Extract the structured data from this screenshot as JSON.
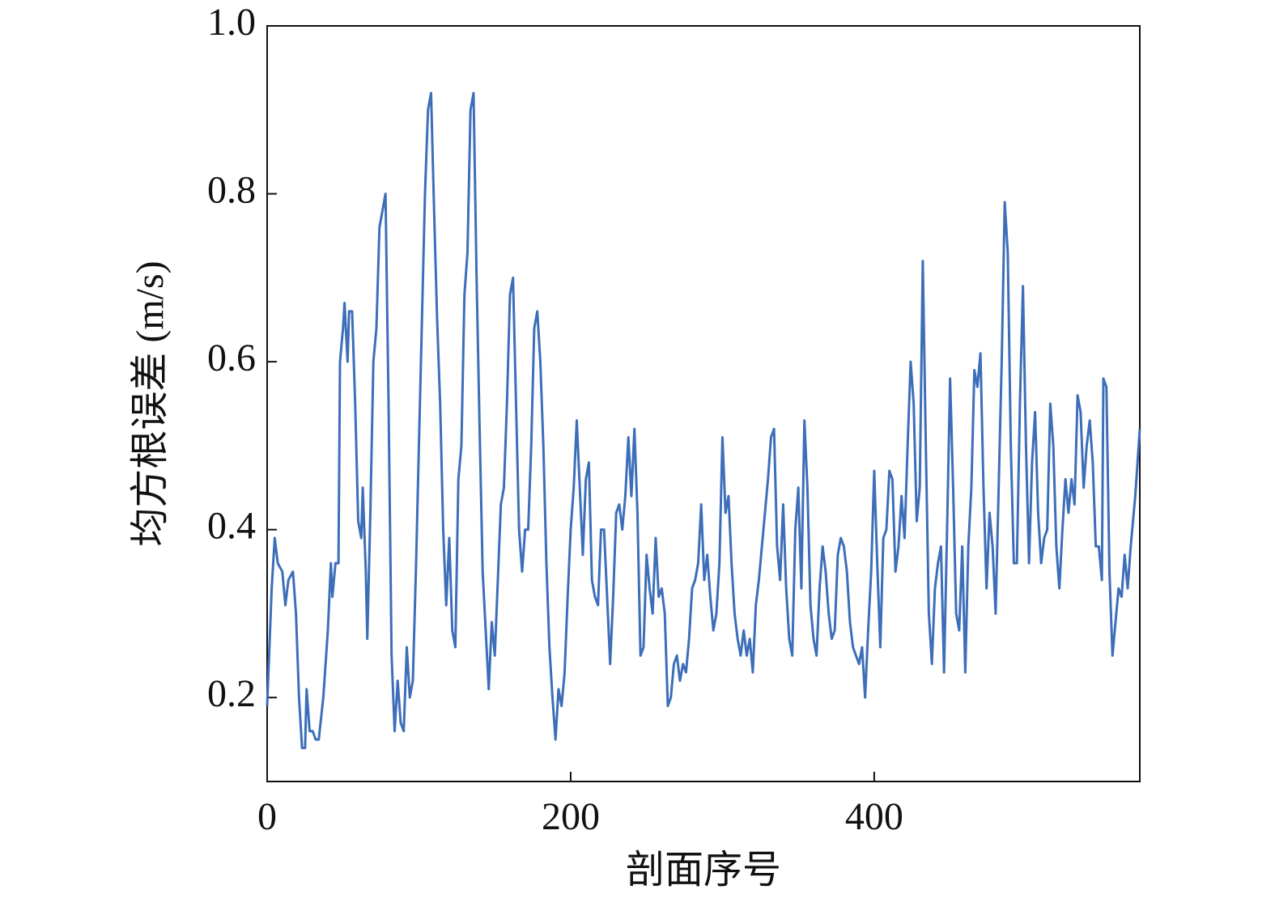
{
  "chart_data": {
    "type": "line",
    "xlabel": "剖面序号",
    "ylabel": "均方根误差 (m/s)",
    "color": "#3d6eb9",
    "xlim": [
      0,
      575
    ],
    "xticks": [
      0,
      200,
      400
    ],
    "ylim": [
      0.1,
      1.0
    ],
    "yticks": [
      0.2,
      0.4,
      0.6,
      0.8,
      {
        "value": 1,
        "label": "1.0"
      }
    ],
    "grid": false,
    "x": [
      0,
      3,
      5,
      7,
      10,
      12,
      14,
      17,
      19,
      21,
      23,
      25,
      26,
      28,
      30,
      32,
      34,
      37,
      40,
      42,
      43,
      45,
      47,
      48,
      50,
      51,
      53,
      54,
      56,
      58,
      60,
      62,
      63,
      65,
      66,
      68,
      70,
      72,
      74,
      76,
      78,
      80,
      82,
      84,
      86,
      88,
      90,
      92,
      94,
      96,
      98,
      100,
      102,
      104,
      106,
      108,
      110,
      112,
      114,
      116,
      118,
      120,
      122,
      124,
      126,
      128,
      130,
      132,
      134,
      136,
      138,
      140,
      142,
      144,
      146,
      148,
      150,
      152,
      154,
      156,
      158,
      160,
      162,
      164,
      166,
      168,
      170,
      172,
      174,
      176,
      178,
      180,
      182,
      184,
      186,
      188,
      190,
      192,
      194,
      196,
      198,
      200,
      202,
      204,
      206,
      208,
      210,
      212,
      214,
      216,
      218,
      220,
      222,
      224,
      226,
      228,
      230,
      232,
      234,
      236,
      238,
      240,
      242,
      244,
      246,
      248,
      250,
      252,
      254,
      256,
      258,
      260,
      262,
      264,
      266,
      268,
      270,
      272,
      274,
      276,
      278,
      280,
      282,
      284,
      286,
      288,
      290,
      292,
      294,
      296,
      298,
      300,
      302,
      304,
      306,
      308,
      310,
      312,
      314,
      316,
      318,
      320,
      322,
      324,
      326,
      328,
      330,
      332,
      334,
      336,
      338,
      340,
      342,
      344,
      346,
      348,
      350,
      352,
      354,
      356,
      358,
      360,
      362,
      364,
      366,
      368,
      370,
      372,
      374,
      376,
      378,
      380,
      382,
      384,
      386,
      388,
      390,
      392,
      394,
      396,
      398,
      400,
      402,
      404,
      406,
      408,
      410,
      412,
      414,
      416,
      418,
      420,
      422,
      424,
      426,
      428,
      430,
      432,
      434,
      436,
      438,
      440,
      442,
      444,
      446,
      448,
      450,
      452,
      454,
      456,
      458,
      460,
      462,
      464,
      466,
      468,
      470,
      472,
      474,
      476,
      478,
      480,
      482,
      484,
      486,
      488,
      490,
      492,
      494,
      496,
      498,
      500,
      502,
      504,
      506,
      508,
      510,
      512,
      514,
      516,
      518,
      520,
      522,
      524,
      526,
      528,
      530,
      532,
      534,
      536,
      538,
      540,
      542,
      544,
      546,
      548,
      550,
      551,
      553,
      555,
      557,
      559,
      561,
      563,
      565,
      567,
      569,
      572,
      575
    ],
    "values": [
      0.19,
      0.33,
      0.39,
      0.36,
      0.35,
      0.31,
      0.34,
      0.35,
      0.3,
      0.2,
      0.14,
      0.14,
      0.21,
      0.16,
      0.16,
      0.15,
      0.15,
      0.2,
      0.28,
      0.36,
      0.32,
      0.36,
      0.36,
      0.6,
      0.64,
      0.67,
      0.6,
      0.66,
      0.66,
      0.55,
      0.41,
      0.39,
      0.45,
      0.35,
      0.27,
      0.42,
      0.6,
      0.64,
      0.76,
      0.78,
      0.8,
      0.55,
      0.25,
      0.16,
      0.22,
      0.17,
      0.16,
      0.26,
      0.2,
      0.22,
      0.35,
      0.5,
      0.65,
      0.8,
      0.9,
      0.92,
      0.78,
      0.65,
      0.55,
      0.4,
      0.31,
      0.39,
      0.28,
      0.26,
      0.46,
      0.5,
      0.68,
      0.73,
      0.9,
      0.92,
      0.7,
      0.52,
      0.35,
      0.28,
      0.21,
      0.29,
      0.25,
      0.34,
      0.43,
      0.45,
      0.55,
      0.68,
      0.7,
      0.55,
      0.4,
      0.35,
      0.4,
      0.4,
      0.5,
      0.64,
      0.66,
      0.6,
      0.5,
      0.36,
      0.26,
      0.2,
      0.15,
      0.21,
      0.19,
      0.23,
      0.32,
      0.4,
      0.45,
      0.53,
      0.45,
      0.37,
      0.46,
      0.48,
      0.34,
      0.32,
      0.31,
      0.4,
      0.4,
      0.32,
      0.24,
      0.32,
      0.42,
      0.43,
      0.4,
      0.44,
      0.51,
      0.44,
      0.52,
      0.42,
      0.25,
      0.26,
      0.37,
      0.33,
      0.3,
      0.39,
      0.32,
      0.33,
      0.3,
      0.19,
      0.2,
      0.24,
      0.25,
      0.22,
      0.24,
      0.23,
      0.27,
      0.33,
      0.34,
      0.36,
      0.43,
      0.34,
      0.37,
      0.32,
      0.28,
      0.3,
      0.36,
      0.51,
      0.42,
      0.44,
      0.36,
      0.3,
      0.27,
      0.25,
      0.28,
      0.25,
      0.27,
      0.23,
      0.31,
      0.34,
      0.38,
      0.42,
      0.46,
      0.51,
      0.52,
      0.38,
      0.34,
      0.43,
      0.33,
      0.27,
      0.25,
      0.4,
      0.45,
      0.33,
      0.53,
      0.45,
      0.31,
      0.27,
      0.25,
      0.33,
      0.38,
      0.35,
      0.3,
      0.27,
      0.28,
      0.37,
      0.39,
      0.38,
      0.35,
      0.29,
      0.26,
      0.25,
      0.24,
      0.26,
      0.2,
      0.28,
      0.35,
      0.47,
      0.36,
      0.26,
      0.39,
      0.4,
      0.47,
      0.46,
      0.35,
      0.38,
      0.44,
      0.39,
      0.5,
      0.6,
      0.55,
      0.41,
      0.45,
      0.72,
      0.5,
      0.3,
      0.24,
      0.33,
      0.36,
      0.38,
      0.23,
      0.4,
      0.58,
      0.45,
      0.3,
      0.28,
      0.38,
      0.23,
      0.38,
      0.45,
      0.59,
      0.57,
      0.61,
      0.45,
      0.33,
      0.42,
      0.38,
      0.3,
      0.45,
      0.6,
      0.79,
      0.73,
      0.5,
      0.36,
      0.36,
      0.55,
      0.69,
      0.5,
      0.36,
      0.48,
      0.54,
      0.42,
      0.36,
      0.39,
      0.4,
      0.55,
      0.5,
      0.38,
      0.33,
      0.4,
      0.46,
      0.42,
      0.46,
      0.43,
      0.56,
      0.54,
      0.45,
      0.5,
      0.53,
      0.48,
      0.38,
      0.38,
      0.34,
      0.58,
      0.57,
      0.35,
      0.25,
      0.29,
      0.33,
      0.32,
      0.37,
      0.33,
      0.38,
      0.44,
      0.52
    ]
  }
}
